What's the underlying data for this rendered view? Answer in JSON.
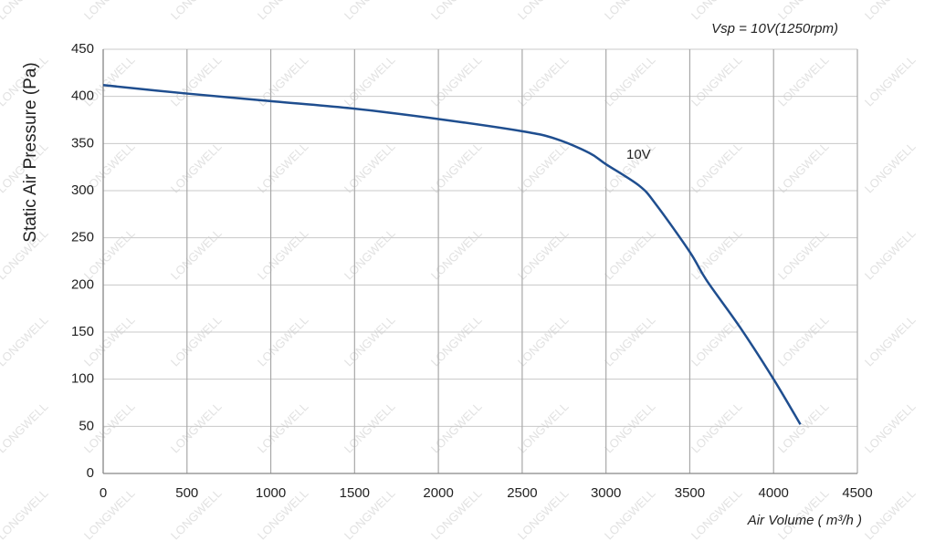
{
  "chart_data": {
    "type": "line",
    "title": "Vsp = 10V(1250rpm)",
    "x_label": "Air Volume ( m³/h )",
    "y_label": "Static Air Pressure  (Pa)",
    "watermark": "LONGWELL",
    "x": [
      0,
      500,
      1000,
      1500,
      2000,
      2500,
      2700,
      2900,
      3000,
      3200,
      3300,
      3500,
      3600,
      3800,
      4000,
      4160
    ],
    "series": [
      {
        "name": "10V",
        "color": "#1f4e8f",
        "values": [
          412,
          403,
          395,
          387,
          376,
          363,
          355,
          340,
          328,
          305,
          285,
          235,
          205,
          155,
          100,
          52
        ]
      }
    ],
    "xlim": [
      0,
      4500
    ],
    "xticks": [
      0,
      500,
      1000,
      1500,
      2000,
      2500,
      3000,
      3500,
      4000,
      4500
    ],
    "ylim": [
      0,
      450
    ],
    "yticks": [
      0,
      50,
      100,
      150,
      200,
      250,
      300,
      350,
      400,
      450
    ],
    "grid": true
  }
}
